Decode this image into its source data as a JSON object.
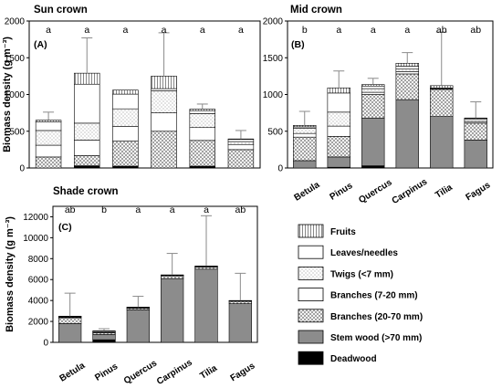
{
  "legend": {
    "items": [
      {
        "key": "fruits",
        "label": "Fruits",
        "pattern": "vlines"
      },
      {
        "key": "leaves",
        "label": "Leaves/needles",
        "pattern": "white"
      },
      {
        "key": "twigs",
        "label": "Twigs (<7 mm)",
        "pattern": "dots"
      },
      {
        "key": "branches_small",
        "label": "Branches (7-20 mm)",
        "pattern": "white"
      },
      {
        "key": "branches_large",
        "label": "Branches (20-70 mm)",
        "pattern": "cross"
      },
      {
        "key": "stem",
        "label": "Stem wood (>70 mm)",
        "pattern": "gray"
      },
      {
        "key": "deadwood",
        "label": "Deadwood",
        "pattern": "black"
      }
    ]
  },
  "colors": {
    "axis": "#000000",
    "stem": "#8c8c8c",
    "deadwood": "#000000",
    "hatch": "#7a7a7a",
    "errorbar": "#8a8a8a",
    "background": "#ffffff"
  },
  "chart_data": [
    {
      "id": "A",
      "type": "bar",
      "stacked": true,
      "title": "Sun crown",
      "panel_label": "(A)",
      "ylabel": "Biomass density (g m⁻³)",
      "ylim": [
        0,
        2000
      ],
      "yticks": [
        0,
        500,
        1000,
        1500,
        2000
      ],
      "categories": [
        "Betula",
        "Pinus",
        "Quercus",
        "Carpinus",
        "Tilia",
        "Fagus"
      ],
      "show_category_labels": false,
      "significance": [
        "a",
        "a",
        "a",
        "a",
        "a",
        "a"
      ],
      "error_bar_top": [
        760,
        1770,
        1030,
        1840,
        870,
        510
      ],
      "series": [
        {
          "key": "deadwood",
          "values": [
            0,
            30,
            25,
            0,
            25,
            0
          ]
        },
        {
          "key": "stem",
          "values": [
            0,
            0,
            0,
            0,
            0,
            0
          ]
        },
        {
          "key": "branches_large",
          "values": [
            150,
            140,
            340,
            500,
            350,
            250
          ]
        },
        {
          "key": "branches_small",
          "values": [
            160,
            210,
            200,
            250,
            175,
            70
          ]
        },
        {
          "key": "twigs",
          "values": [
            200,
            230,
            240,
            300,
            190,
            40
          ]
        },
        {
          "key": "leaves",
          "values": [
            120,
            530,
            200,
            30,
            40,
            30
          ]
        },
        {
          "key": "fruits",
          "values": [
            20,
            150,
            55,
            170,
            20,
            5
          ]
        }
      ]
    },
    {
      "id": "B",
      "type": "bar",
      "stacked": true,
      "title": "Mid crown",
      "panel_label": "(B)",
      "ylabel": "",
      "ylim": [
        0,
        2000
      ],
      "yticks": [
        0,
        500,
        1000,
        1500,
        2000
      ],
      "categories": [
        "Betula",
        "Pinus",
        "Quercus",
        "Carpinus",
        "Tilia",
        "Fagus"
      ],
      "show_category_labels": true,
      "significance": [
        "b",
        "a",
        "a",
        "a",
        "ab",
        "ab"
      ],
      "error_bar_top": [
        770,
        1320,
        1220,
        1570,
        1850,
        900
      ],
      "series": [
        {
          "key": "deadwood",
          "values": [
            0,
            10,
            30,
            0,
            0,
            0
          ]
        },
        {
          "key": "stem",
          "values": [
            100,
            140,
            650,
            930,
            700,
            380
          ]
        },
        {
          "key": "branches_large",
          "values": [
            320,
            280,
            320,
            350,
            370,
            230
          ]
        },
        {
          "key": "branches_small",
          "values": [
            50,
            140,
            30,
            30,
            10,
            20
          ]
        },
        {
          "key": "twigs",
          "values": [
            70,
            190,
            50,
            35,
            10,
            30
          ]
        },
        {
          "key": "leaves",
          "values": [
            20,
            260,
            35,
            40,
            0,
            15
          ]
        },
        {
          "key": "fruits",
          "values": [
            20,
            70,
            20,
            40,
            30,
            5
          ]
        }
      ]
    },
    {
      "id": "C",
      "type": "bar",
      "stacked": true,
      "title": "Shade crown",
      "panel_label": "(C)",
      "ylabel": "Biomass density (g m⁻³)",
      "ylim": [
        0,
        13000
      ],
      "yticks": [
        0,
        2000,
        4000,
        6000,
        8000,
        10000,
        12000
      ],
      "categories": [
        "Betula",
        "Pinus",
        "Quercus",
        "Carpinus",
        "Tilia",
        "Fagus"
      ],
      "show_category_labels": true,
      "significance": [
        "ab",
        "b",
        "a",
        "a",
        "a",
        "ab"
      ],
      "error_bar_top": [
        4700,
        1300,
        4400,
        8500,
        12100,
        6600
      ],
      "series": [
        {
          "key": "deadwood",
          "values": [
            0,
            250,
            0,
            0,
            0,
            0
          ]
        },
        {
          "key": "stem",
          "values": [
            1800,
            500,
            3100,
            6100,
            7000,
            3700
          ]
        },
        {
          "key": "branches_large",
          "values": [
            550,
            150,
            150,
            250,
            200,
            220
          ]
        },
        {
          "key": "branches_small",
          "values": [
            50,
            50,
            40,
            20,
            20,
            20
          ]
        },
        {
          "key": "twigs",
          "values": [
            50,
            100,
            40,
            30,
            30,
            20
          ]
        },
        {
          "key": "leaves",
          "values": [
            20,
            50,
            20,
            20,
            10,
            10
          ]
        },
        {
          "key": "fruits",
          "values": [
            30,
            0,
            10,
            30,
            40,
            30
          ]
        }
      ]
    }
  ]
}
